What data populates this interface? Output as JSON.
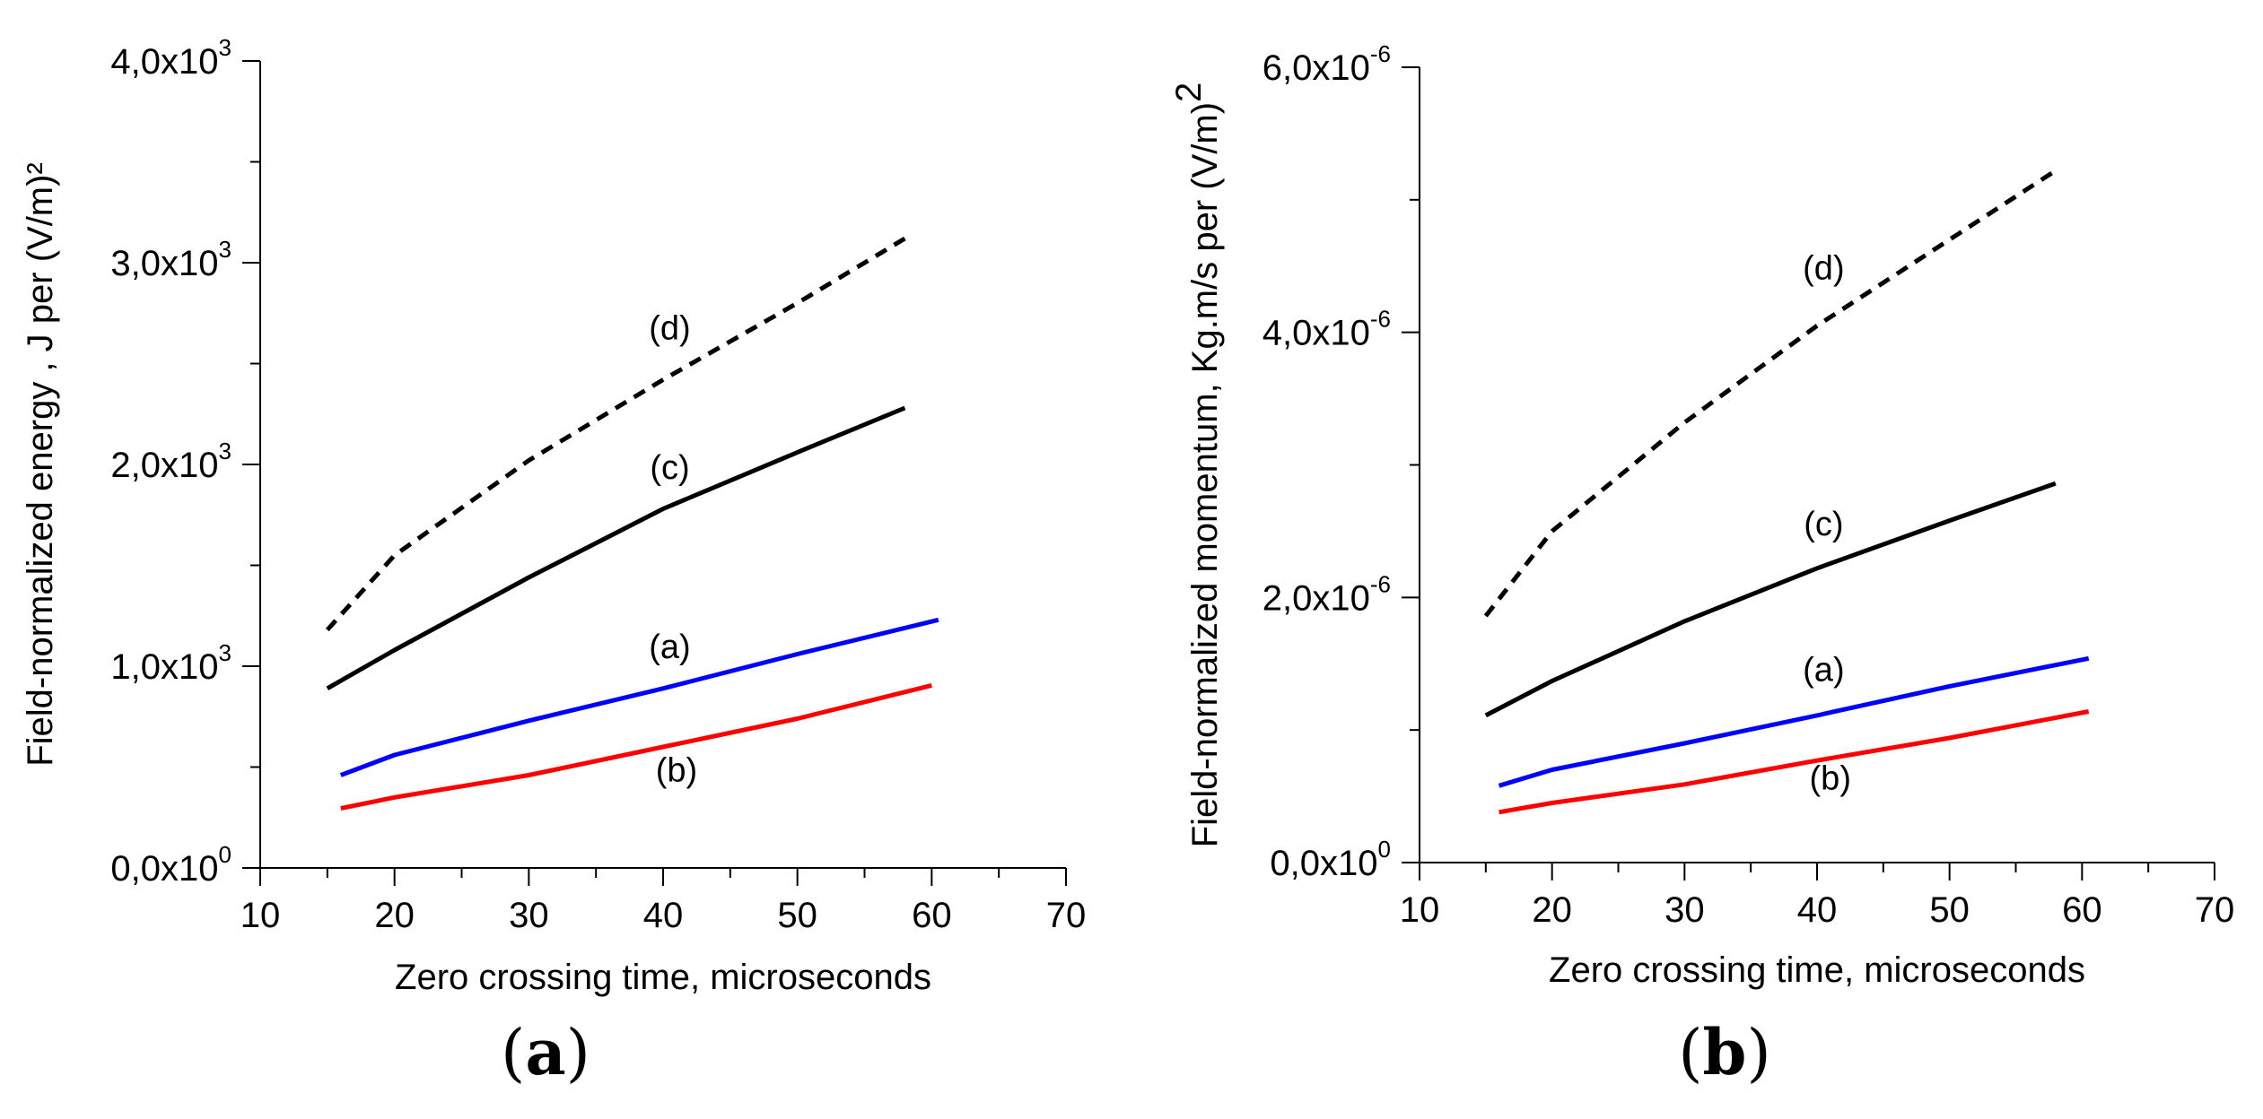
{
  "chart_data": [
    {
      "type": "line",
      "panel_label": {
        "open": "(",
        "letter": "a",
        "close": ")"
      },
      "xlabel": "Zero crossing time, microseconds",
      "ylabel": "Field-normalized energy , J per (V/m)²",
      "xlim": [
        10,
        70
      ],
      "ylim": [
        0,
        4000
      ],
      "x_ticks": [
        "10",
        "20",
        "30",
        "40",
        "50",
        "60",
        "70"
      ],
      "y_ticks": [
        {
          "value": 0,
          "mantissa": "0,0x10",
          "exp": "0"
        },
        {
          "value": 1000,
          "mantissa": "1,0x10",
          "exp": "3"
        },
        {
          "value": 2000,
          "mantissa": "2,0x10",
          "exp": "3"
        },
        {
          "value": 3000,
          "mantissa": "3,0x10",
          "exp": "3"
        },
        {
          "value": 4000,
          "mantissa": "4,0x10",
          "exp": "3"
        }
      ],
      "grid": false,
      "series": [
        {
          "label": "(a)",
          "color": "#0000ff",
          "dashed": false,
          "x": [
            16,
            20,
            30,
            40,
            50,
            60.5
          ],
          "y": [
            460,
            560,
            730,
            890,
            1060,
            1230
          ]
        },
        {
          "label": "(b)",
          "color": "#ff0000",
          "dashed": false,
          "x": [
            16,
            20,
            30,
            40,
            50,
            60
          ],
          "y": [
            295,
            350,
            460,
            600,
            740,
            905
          ]
        },
        {
          "label": "(c)",
          "color": "#000000",
          "dashed": false,
          "x": [
            15,
            20,
            30,
            40,
            50,
            58
          ],
          "y": [
            890,
            1080,
            1440,
            1780,
            2060,
            2280
          ]
        },
        {
          "label": "(d)",
          "color": "#000000",
          "dashed": true,
          "x": [
            15,
            20,
            30,
            40,
            50,
            58
          ],
          "y": [
            1180,
            1550,
            2020,
            2420,
            2800,
            3120
          ]
        }
      ],
      "annotations": [
        {
          "text": "(a)",
          "x": 40.5,
          "y": 1040
        },
        {
          "text": "(b)",
          "x": 41,
          "y": 430
        },
        {
          "text": "(c)",
          "x": 40.5,
          "y": 1930
        },
        {
          "text": "(d)",
          "x": 40.5,
          "y": 2620
        }
      ]
    },
    {
      "type": "line",
      "panel_label": {
        "open": "(",
        "letter": "b",
        "close": ")"
      },
      "xlabel": "Zero crossing time, microseconds",
      "ylabel": "Field-normalized momentum, Kg.m/s per (V/m)",
      "ylabel_sup": "2",
      "xlim": [
        10,
        70
      ],
      "ylim": [
        0,
        6e-06
      ],
      "x_ticks": [
        "10",
        "20",
        "30",
        "40",
        "50",
        "60",
        "70"
      ],
      "y_ticks": [
        {
          "value": 0,
          "mantissa": "0,0x10",
          "exp": "0"
        },
        {
          "value": 2e-06,
          "mantissa": "2,0x10",
          "exp": "-6"
        },
        {
          "value": 4e-06,
          "mantissa": "4,0x10",
          "exp": "-6"
        },
        {
          "value": 6e-06,
          "mantissa": "6,0x10",
          "exp": "-6"
        }
      ],
      "grid": false,
      "series": [
        {
          "label": "(a)",
          "color": "#0000ff",
          "dashed": false,
          "x": [
            16,
            20,
            30,
            40,
            50,
            60.5
          ],
          "y": [
            5.8e-07,
            7e-07,
            9e-07,
            1.11e-06,
            1.33e-06,
            1.54e-06
          ]
        },
        {
          "label": "(b)",
          "color": "#ff0000",
          "dashed": false,
          "x": [
            16,
            20,
            30,
            40,
            50,
            60.5
          ],
          "y": [
            3.8e-07,
            4.5e-07,
            5.9e-07,
            7.7e-07,
            9.4e-07,
            1.14e-06
          ]
        },
        {
          "label": "(c)",
          "color": "#000000",
          "dashed": false,
          "x": [
            15,
            20,
            30,
            40,
            50,
            58
          ],
          "y": [
            1.11e-06,
            1.37e-06,
            1.82e-06,
            2.22e-06,
            2.58e-06,
            2.86e-06
          ]
        },
        {
          "label": "(d)",
          "color": "#000000",
          "dashed": true,
          "x": [
            15,
            20,
            30,
            40,
            50,
            58
          ],
          "y": [
            1.86e-06,
            2.5e-06,
            3.32e-06,
            4.05e-06,
            4.7e-06,
            5.22e-06
          ]
        }
      ],
      "annotations": [
        {
          "text": "(a)",
          "x": 40.5,
          "y": 1.37e-06
        },
        {
          "text": "(b)",
          "x": 41,
          "y": 5.5e-07
        },
        {
          "text": "(c)",
          "x": 40.5,
          "y": 2.47e-06
        },
        {
          "text": "(d)",
          "x": 40.5,
          "y": 4.4e-06
        }
      ]
    }
  ]
}
